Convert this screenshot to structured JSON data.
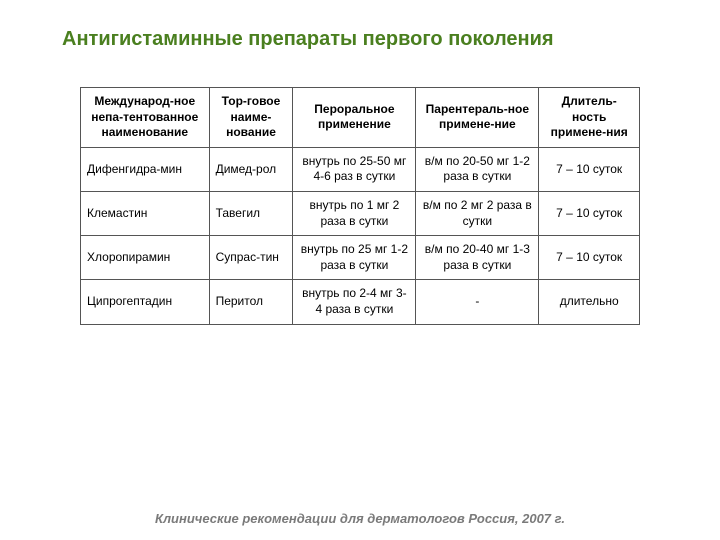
{
  "title": "Антигистаминные препараты первого поколения",
  "footnote": "Клинические рекомендации для дерматологов Россия, 2007 г.",
  "table": {
    "columns": [
      "Международ-ное непа-тентованное наименование",
      "Тор-говое наиме-нование",
      "Пероральное применение",
      "Парентераль-ное примене-ние",
      "Длитель-ность примене-ния"
    ],
    "column_widths_pct": [
      23,
      15,
      22,
      22,
      18
    ],
    "header_align": "center",
    "cell_font_size_pt": 9,
    "header_font_size_pt": 9,
    "border_color": "#555555",
    "background_color": "#ffffff",
    "text_color": "#000000",
    "rows": [
      [
        "Дифенгидра-мин",
        "Димед-рол",
        "внутрь по 25-50 мг 4-6 раз в сутки",
        "в/м по 20-50 мг 1-2 раза в сутки",
        "7 – 10 суток"
      ],
      [
        "Клемастин",
        "Тавегил",
        "внутрь по 1 мг 2 раза в сутки",
        "в/м по 2 мг 2 раза в сутки",
        "7 – 10 суток"
      ],
      [
        "Хлоропирамин",
        "Супрас-тин",
        "внутрь по 25 мг 1-2 раза в сутки",
        "в/м по 20-40 мг 1-3 раза в сутки",
        "7 – 10 суток"
      ],
      [
        "Ципрогептадин",
        "Перитол",
        "внутрь по 2-4 мг 3-4 раза в сутки",
        "-",
        "длительно"
      ]
    ],
    "cell_align": [
      "left",
      "left",
      "center",
      "center",
      "center"
    ]
  },
  "title_color": "#4a7f1f",
  "title_fontsize_pt": 15,
  "footnote_color": "#7a7a7a",
  "footnote_fontsize_pt": 10,
  "body_background": "#ffffff"
}
